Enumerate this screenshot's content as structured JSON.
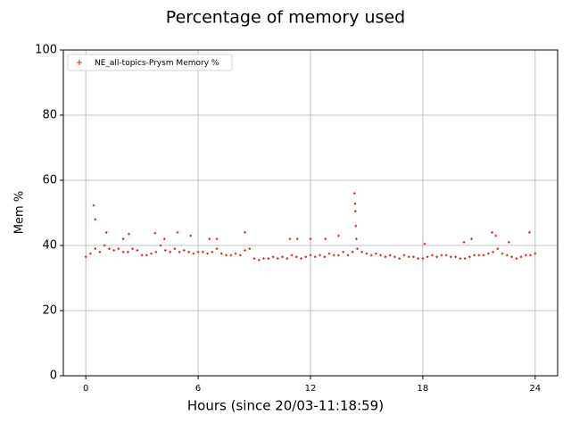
{
  "chart_data": {
    "type": "scatter",
    "title": "Percentage of memory used",
    "xlabel": "Hours (since 20/03-11:18:59)",
    "ylabel": "Mem %",
    "xlim": [
      -1.2,
      25.2
    ],
    "ylim": [
      0,
      100
    ],
    "xticks": [
      0,
      6,
      12,
      18,
      24
    ],
    "yticks": [
      0,
      20,
      40,
      60,
      80,
      100
    ],
    "grid": true,
    "legend": "upper left",
    "series": [
      {
        "name": "NE_all-topics-Prysm Memory %",
        "color": "#d42a1e",
        "x": [
          0,
          0.25,
          0.5,
          0.75,
          1,
          1.25,
          1.5,
          1.75,
          2,
          2.25,
          2.5,
          2.75,
          3,
          3.25,
          3.5,
          3.75,
          4,
          4.25,
          4.5,
          4.75,
          5,
          5.25,
          5.5,
          5.75,
          6,
          6.25,
          6.5,
          6.75,
          7,
          7.25,
          7.5,
          7.75,
          8,
          8.25,
          8.5,
          8.75,
          9,
          9.25,
          9.5,
          9.75,
          10,
          10.25,
          10.5,
          10.75,
          11,
          11.25,
          11.5,
          11.75,
          12,
          12.25,
          12.5,
          12.75,
          13,
          13.25,
          13.5,
          13.75,
          14,
          14.25,
          14.5,
          14.75,
          15,
          15.25,
          15.5,
          15.75,
          16,
          16.25,
          16.5,
          16.75,
          17,
          17.25,
          17.5,
          17.75,
          18,
          18.25,
          18.5,
          18.75,
          19,
          19.25,
          19.5,
          19.75,
          20,
          20.25,
          20.5,
          20.75,
          21,
          21.25,
          21.5,
          21.75,
          22,
          22.25,
          22.5,
          22.75,
          23,
          23.25,
          23.5,
          23.75,
          24,
          0.42,
          0.5,
          1.1,
          2.0,
          2.3,
          3.7,
          4.2,
          4.9,
          5.6,
          6.6,
          7.0,
          8.5,
          10.9,
          11.3,
          12.0,
          12.8,
          13.5,
          14.35,
          14.38,
          14.4,
          14.42,
          14.45,
          18.1,
          20.2,
          20.6,
          21.7,
          21.9,
          22.6,
          23.7
        ],
        "values": [
          36.5,
          37.5,
          39,
          38,
          40,
          39,
          38.5,
          39,
          38,
          38,
          39,
          38.5,
          37,
          37,
          37.5,
          38,
          40,
          38.5,
          38,
          39,
          38,
          38.5,
          38,
          37.5,
          38,
          38,
          37.5,
          38,
          39,
          37.5,
          37,
          37,
          37.5,
          37,
          38.5,
          39,
          36,
          35.5,
          36,
          36,
          36.5,
          36,
          36.5,
          36,
          37,
          36.5,
          36,
          36.5,
          37,
          36.5,
          37,
          36.5,
          37.5,
          37,
          37,
          38,
          37,
          38,
          39,
          38,
          37.5,
          37,
          37.5,
          37,
          36.5,
          37,
          36.5,
          36,
          37,
          36.5,
          36.5,
          36,
          36,
          36.5,
          37,
          36.5,
          37,
          37,
          36.5,
          36.5,
          36,
          36,
          36.5,
          37,
          37,
          37,
          37.5,
          38,
          39,
          37.5,
          37,
          36.5,
          36,
          36.5,
          37,
          37,
          37.5,
          52.3,
          48,
          44,
          42,
          43.5,
          43.8,
          42,
          44,
          43,
          42,
          42,
          44,
          42,
          42,
          42,
          42,
          43,
          56,
          52.8,
          50.5,
          46,
          42,
          40.5,
          41,
          42,
          44,
          43,
          41,
          44
        ]
      }
    ]
  }
}
